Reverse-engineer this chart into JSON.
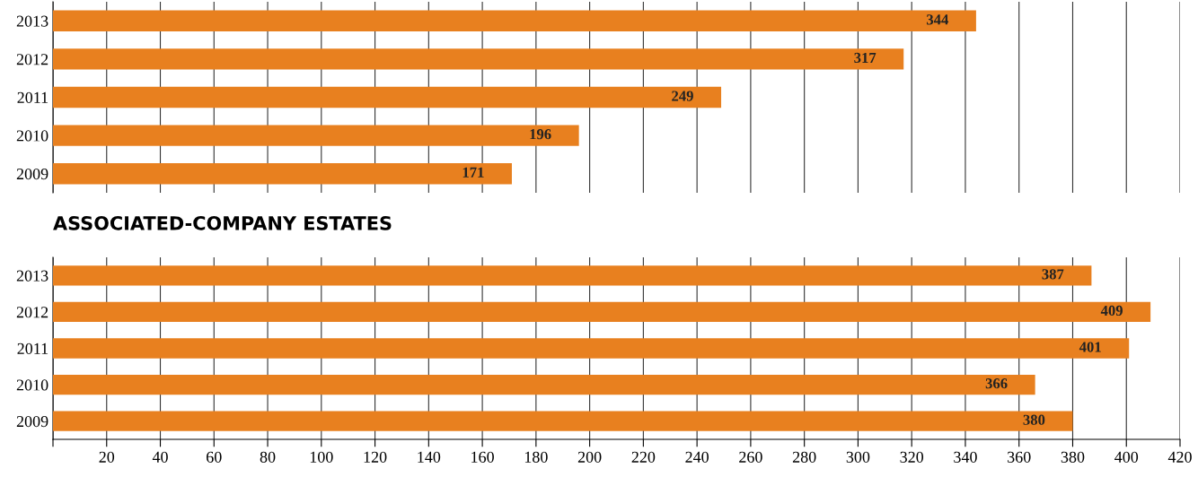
{
  "chart_data": [
    {
      "type": "bar",
      "orientation": "horizontal",
      "categories": [
        "2013",
        "2012",
        "2011",
        "2010",
        "2009"
      ],
      "values": [
        344,
        317,
        249,
        196,
        171
      ],
      "color": "#e8801f",
      "data_labels": true,
      "xlim": [
        0,
        420
      ],
      "xticks": [
        {
          "value": 0,
          "label": null
        },
        20,
        40,
        60,
        80,
        100,
        120,
        140,
        160,
        180,
        200,
        220,
        240,
        260,
        280,
        300,
        320,
        340,
        360,
        380,
        400,
        420
      ],
      "grid": "x",
      "tick_labels": "y"
    },
    {
      "type": "bar",
      "orientation": "horizontal",
      "title": "ASSOCIATED-COMPANY ESTATES",
      "categories": [
        "2013",
        "2012",
        "2011",
        "2010",
        "2009"
      ],
      "values": [
        387,
        409,
        401,
        366,
        380
      ],
      "color": "#e8801f",
      "data_labels": true,
      "xlim": [
        0,
        420
      ],
      "xticks": [
        {
          "value": 0,
          "label": null
        },
        20,
        40,
        60,
        80,
        100,
        120,
        140,
        160,
        180,
        200,
        220,
        240,
        260,
        280,
        300,
        320,
        340,
        360,
        380,
        400,
        420
      ],
      "grid": "x"
    }
  ]
}
